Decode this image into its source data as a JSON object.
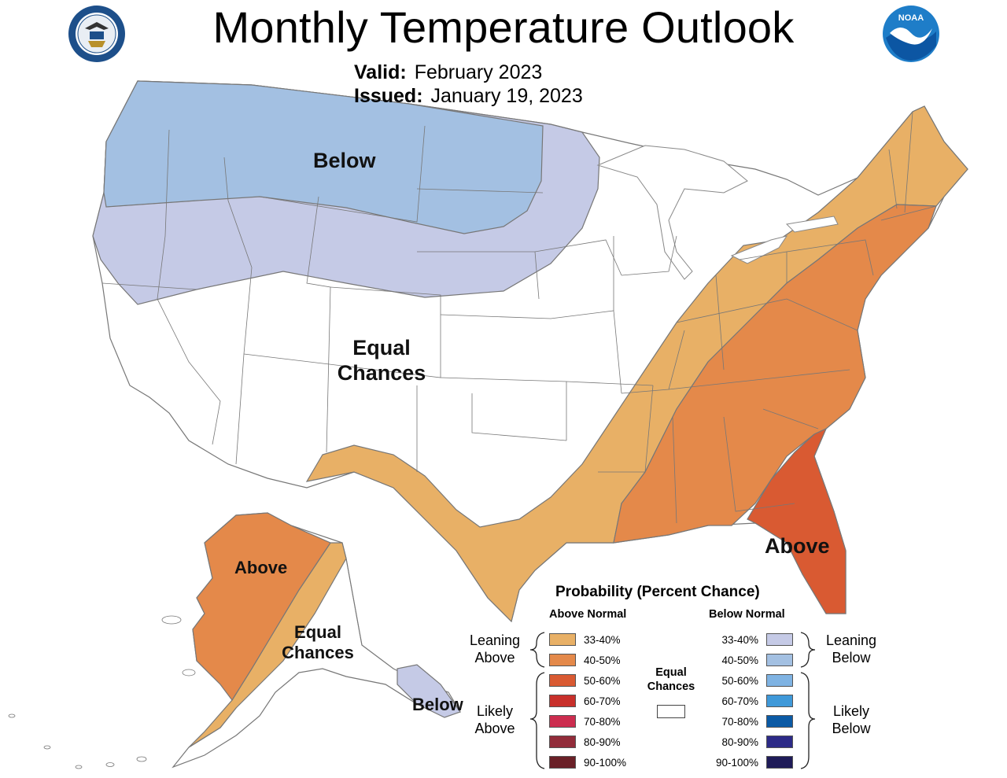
{
  "header": {
    "title": "Monthly Temperature Outlook",
    "valid_label": "Valid:",
    "valid_value": "February 2023",
    "issued_label": "Issued:",
    "issued_value": "January 19, 2023",
    "left_logo_text": "DEPARTMENT OF COMMERCE · UNITED STATES OF AMERICA",
    "right_logo_text": "NOAA"
  },
  "map": {
    "region_labels": {
      "below_conus": "Below",
      "equal_conus_1": "Equal",
      "equal_conus_2": "Chances",
      "above_conus": "Above",
      "above_alaska": "Above",
      "equal_alaska_1": "Equal",
      "equal_alaska_2": "Chances",
      "below_alaska": "Below"
    },
    "colors": {
      "above_33_40": "#e8b066",
      "above_40_50": "#e4894a",
      "above_50_60": "#d95a32",
      "below_33_40": "#c5cae6",
      "below_40_50": "#a3c0e2",
      "equal": "#ffffff",
      "border": "#777777"
    }
  },
  "legend": {
    "title": "Probability (Percent Chance)",
    "above_header": "Above Normal",
    "below_header": "Below Normal",
    "equal_line1": "Equal",
    "equal_line2": "Chances",
    "leaning_above_1": "Leaning",
    "leaning_above_2": "Above",
    "likely_above_1": "Likely",
    "likely_above_2": "Above",
    "leaning_below_1": "Leaning",
    "leaning_below_2": "Below",
    "likely_below_1": "Likely",
    "likely_below_2": "Below",
    "above_rows": [
      {
        "label": "33-40%",
        "color": "#e8b066"
      },
      {
        "label": "40-50%",
        "color": "#e4894a"
      },
      {
        "label": "50-60%",
        "color": "#d95a32"
      },
      {
        "label": "60-70%",
        "color": "#c8302b"
      },
      {
        "label": "70-80%",
        "color": "#cc2d4f"
      },
      {
        "label": "80-90%",
        "color": "#922c3a"
      },
      {
        "label": "90-100%",
        "color": "#6a2027"
      }
    ],
    "below_rows": [
      {
        "label": "33-40%",
        "color": "#c5cae6"
      },
      {
        "label": "40-50%",
        "color": "#a3c0e2"
      },
      {
        "label": "50-60%",
        "color": "#7fb3e3"
      },
      {
        "label": "60-70%",
        "color": "#3f99d9"
      },
      {
        "label": "70-80%",
        "color": "#0b5aa5"
      },
      {
        "label": "80-90%",
        "color": "#2c2a87"
      },
      {
        "label": "90-100%",
        "color": "#1f1b58"
      }
    ]
  }
}
